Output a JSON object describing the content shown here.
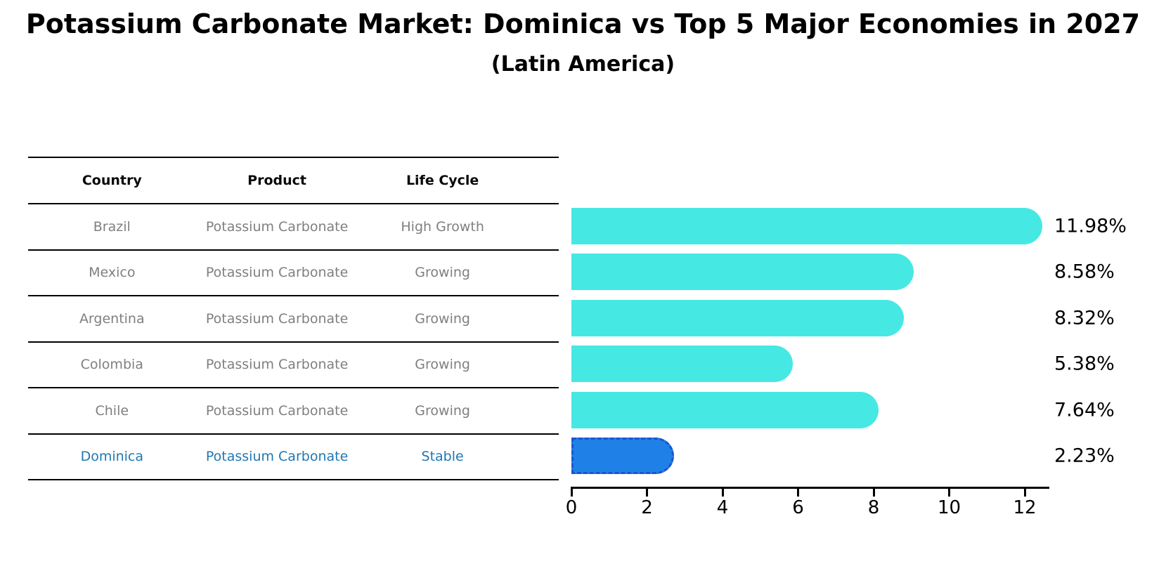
{
  "title": "Potassium Carbonate Market: Dominica vs Top 5 Major Economies in 2027",
  "subtitle": "(Latin America)",
  "table": {
    "headers": [
      "Country",
      "Product",
      "Life Cycle"
    ],
    "rows": [
      {
        "country": "Brazil",
        "product": "Potassium Carbonate",
        "life_cycle": "High Growth"
      },
      {
        "country": "Mexico",
        "product": "Potassium Carbonate",
        "life_cycle": "Growing"
      },
      {
        "country": "Argentina",
        "product": "Potassium Carbonate",
        "life_cycle": "Growing"
      },
      {
        "country": "Colombia",
        "product": "Potassium Carbonate",
        "life_cycle": "Growing"
      },
      {
        "country": "Chile",
        "product": "Potassium Carbonate",
        "life_cycle": "Growing"
      },
      {
        "country": "Dominica",
        "product": "Potassium Carbonate",
        "life_cycle": "Stable"
      }
    ],
    "highlight_row_index": 5
  },
  "chart_data": {
    "type": "bar",
    "orientation": "horizontal",
    "title": "Potassium Carbonate Market: Dominica vs Top 5 Major Economies in 2027",
    "subtitle": "(Latin America)",
    "categories": [
      "Brazil",
      "Mexico",
      "Argentina",
      "Colombia",
      "Chile",
      "Dominica"
    ],
    "values": [
      11.98,
      8.58,
      8.32,
      5.38,
      7.64,
      2.23
    ],
    "value_labels": [
      "11.98%",
      "8.58%",
      "8.32%",
      "5.38%",
      "7.64%",
      "2.23%"
    ],
    "x_ticks": [
      0,
      2,
      4,
      6,
      8,
      10,
      12
    ],
    "xlim": [
      0,
      12.65
    ],
    "grid": false,
    "legend": "none",
    "highlight_index": 5,
    "bar_color": "#46e8e4",
    "highlight_bar_color": "#1f80e8",
    "highlight_border_color": "#1d55cc"
  },
  "colors": {
    "text": "#000000",
    "muted_text": "#7f7f7f",
    "highlight_text": "#1f77b4",
    "bar": "#46e8e4",
    "highlight_bar": "#1f80e8"
  }
}
